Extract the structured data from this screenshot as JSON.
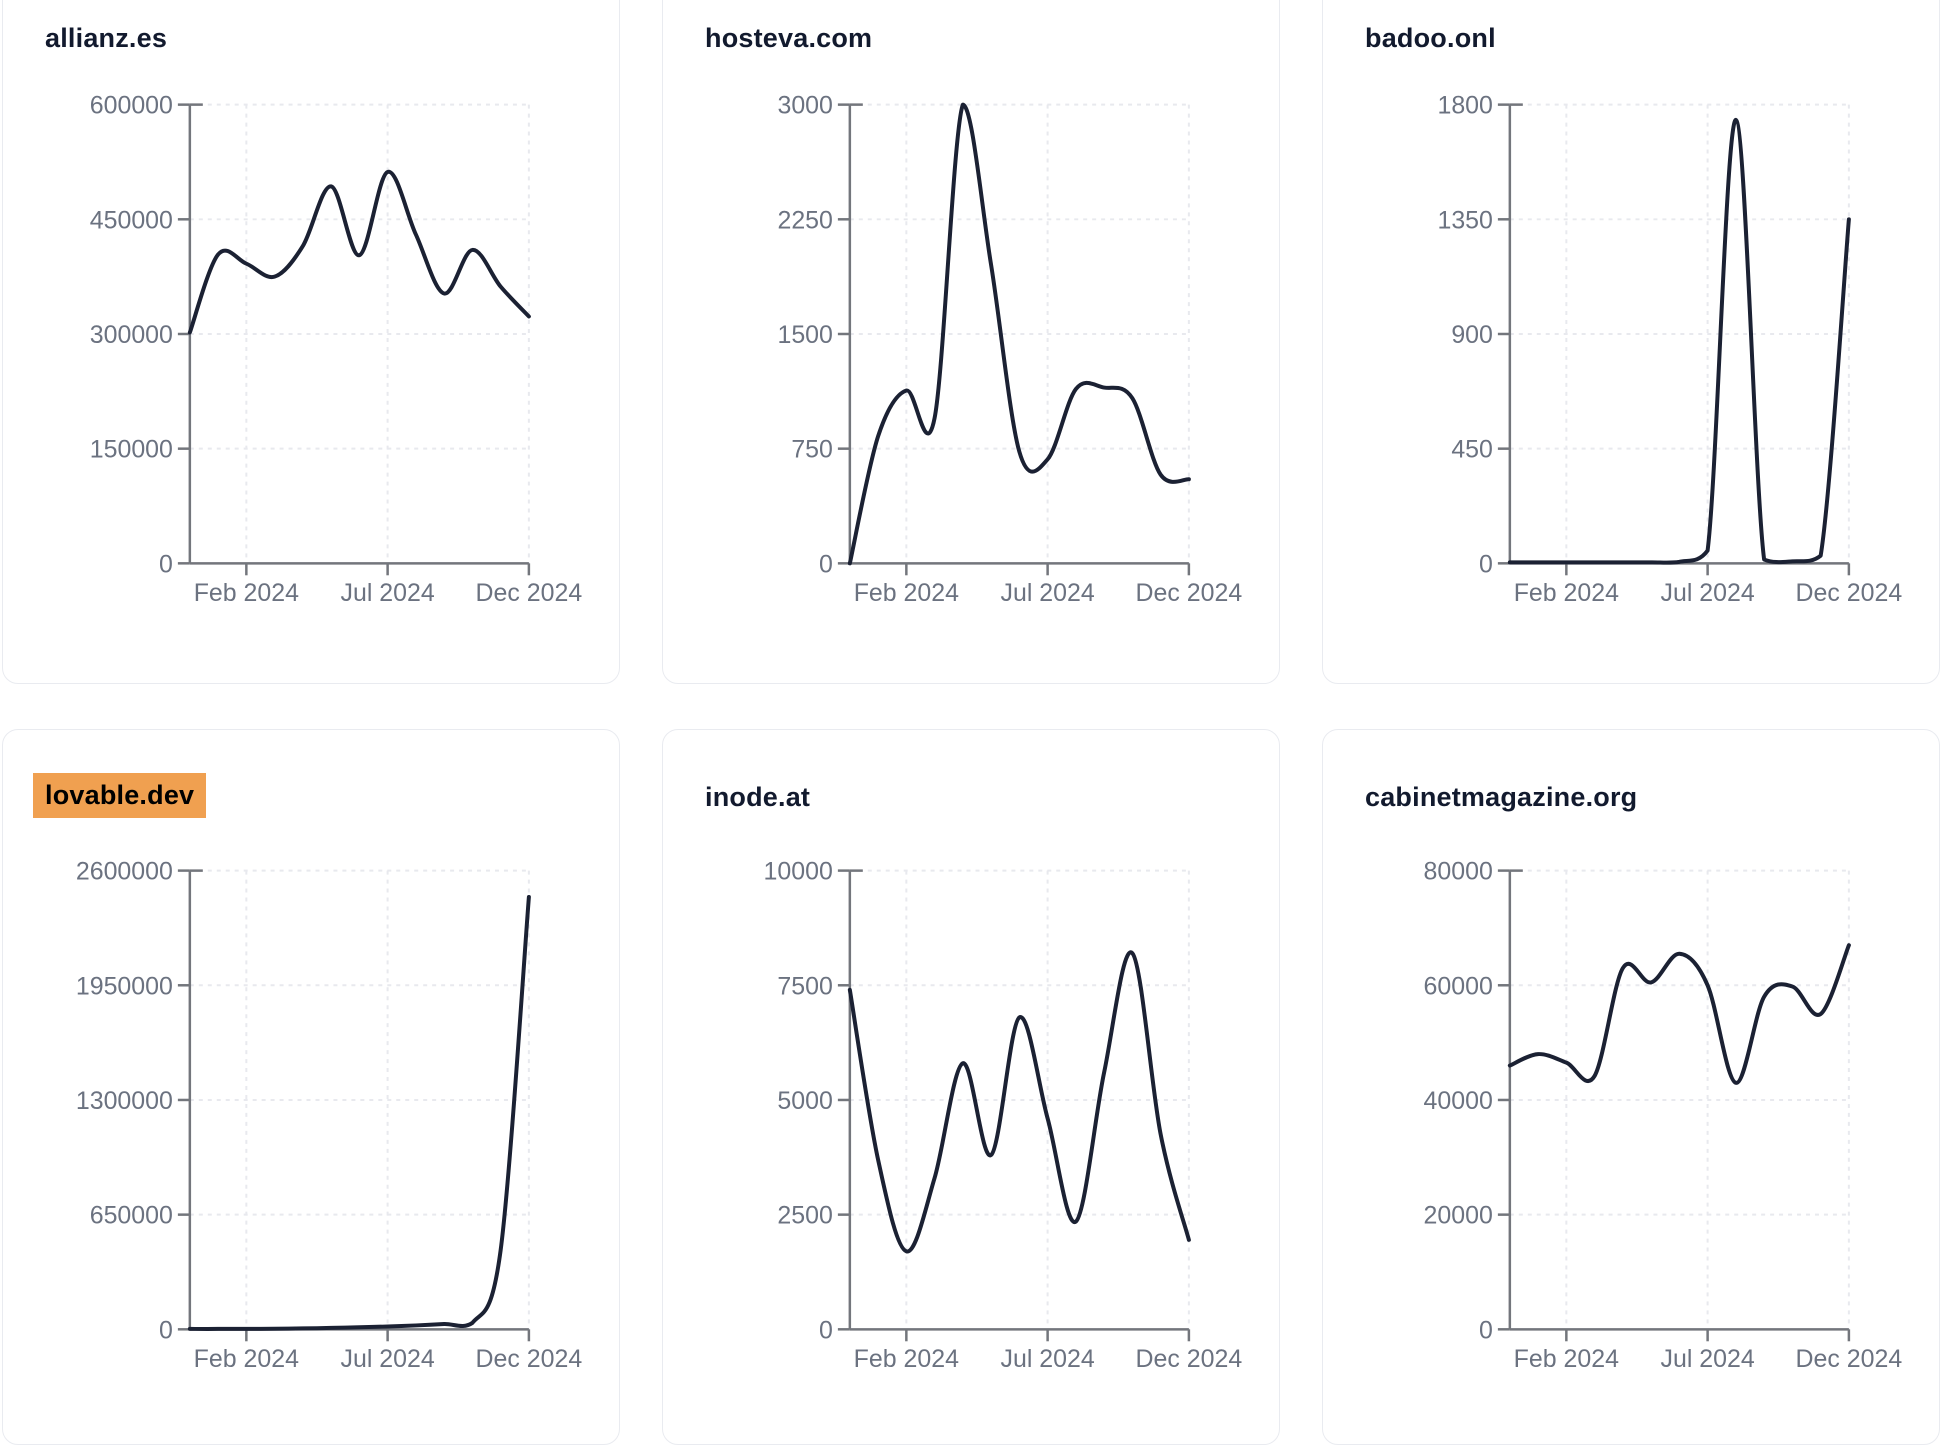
{
  "page": {
    "background": "#ffffff"
  },
  "style": {
    "line_color": "#1b2133",
    "axis_color": "#73767c",
    "grid_color": "#e8e9ee",
    "tick_label_color": "#6b7280",
    "title_color": "#121a2e",
    "highlight_color": "#f0a050",
    "card_border_color": "#e9ebf0",
    "card_background": "#ffffff"
  },
  "x_axis": {
    "tick_labels": [
      "Feb 2024",
      "Jul 2024",
      "Dec 2024"
    ],
    "tick_month_index": [
      2,
      7,
      12
    ]
  },
  "chart_data": [
    {
      "type": "line",
      "title": "allianz.es",
      "title_highlighted": false,
      "x": [
        "Dec 2023",
        "Jan 2024",
        "Feb 2024",
        "Mar 2024",
        "Apr 2024",
        "May 2024",
        "Jun 2024",
        "Jul 2024",
        "Aug 2024",
        "Sep 2024",
        "Oct 2024",
        "Nov 2024",
        "Dec 2024"
      ],
      "values": [
        302000,
        404000,
        392000,
        375000,
        415000,
        493000,
        403000,
        512000,
        430000,
        353000,
        410000,
        362000,
        323000
      ],
      "ylim": [
        0,
        600000
      ],
      "y_ticks": [
        600000,
        450000,
        300000,
        150000,
        0
      ],
      "x_tick_labels": [
        "Feb 2024",
        "Jul 2024",
        "Dec 2024"
      ],
      "grid": "dashed",
      "legend": false
    },
    {
      "type": "line",
      "title": "hosteva.com",
      "title_highlighted": false,
      "x": [
        "Dec 2023",
        "Jan 2024",
        "Feb 2024",
        "Mar 2024",
        "Apr 2024",
        "May 2024",
        "Jun 2024",
        "Jul 2024",
        "Aug 2024",
        "Sep 2024",
        "Oct 2024",
        "Nov 2024",
        "Dec 2024"
      ],
      "values": [
        0,
        830,
        1130,
        950,
        3000,
        1950,
        730,
        680,
        1140,
        1150,
        1080,
        580,
        550
      ],
      "ylim": [
        0,
        3000
      ],
      "y_ticks": [
        3000,
        2250,
        1500,
        750,
        0
      ],
      "x_tick_labels": [
        "Feb 2024",
        "Jul 2024",
        "Dec 2024"
      ],
      "grid": "dashed",
      "legend": false
    },
    {
      "type": "line",
      "title": "badoo.onl",
      "title_highlighted": false,
      "x": [
        "Dec 2023",
        "Jan 2024",
        "Feb 2024",
        "Mar 2024",
        "Apr 2024",
        "May 2024",
        "Jun 2024",
        "Jul 2024",
        "Aug 2024",
        "Sep 2024",
        "Oct 2024",
        "Nov 2024",
        "Dec 2024"
      ],
      "values": [
        4,
        4,
        4,
        4,
        4,
        4,
        6,
        50,
        1740,
        15,
        8,
        30,
        1350
      ],
      "ylim": [
        0,
        1800
      ],
      "y_ticks": [
        1800,
        1350,
        900,
        450,
        0
      ],
      "x_tick_labels": [
        "Feb 2024",
        "Jul 2024",
        "Dec 2024"
      ],
      "grid": "dashed",
      "legend": false
    },
    {
      "type": "line",
      "title": "lovable.dev",
      "title_highlighted": true,
      "x": [
        "Dec 2023",
        "Jan 2024",
        "Feb 2024",
        "Mar 2024",
        "Apr 2024",
        "May 2024",
        "Jun 2024",
        "Jul 2024",
        "Aug 2024",
        "Sep 2024",
        "Oct 2024",
        "Nov 2024",
        "Dec 2024"
      ],
      "values": [
        2000,
        2000,
        2500,
        3500,
        5000,
        8000,
        12000,
        16000,
        22000,
        30000,
        36000,
        450000,
        2450000
      ],
      "ylim": [
        0,
        2600000
      ],
      "y_ticks": [
        2600000,
        1950000,
        1300000,
        650000,
        0
      ],
      "x_tick_labels": [
        "Feb 2024",
        "Jul 2024",
        "Dec 2024"
      ],
      "grid": "dashed",
      "legend": false
    },
    {
      "type": "line",
      "title": "inode.at",
      "title_highlighted": false,
      "x": [
        "Dec 2023",
        "Jan 2024",
        "Feb 2024",
        "Mar 2024",
        "Apr 2024",
        "May 2024",
        "Jun 2024",
        "Jul 2024",
        "Aug 2024",
        "Sep 2024",
        "Oct 2024",
        "Nov 2024",
        "Dec 2024"
      ],
      "values": [
        7400,
        3700,
        1700,
        3300,
        5800,
        3800,
        6800,
        4600,
        2350,
        5600,
        8200,
        4250,
        1950
      ],
      "ylim": [
        0,
        10000
      ],
      "y_ticks": [
        10000,
        7500,
        5000,
        2500,
        0
      ],
      "x_tick_labels": [
        "Feb 2024",
        "Jul 2024",
        "Dec 2024"
      ],
      "grid": "dashed",
      "legend": false
    },
    {
      "type": "line",
      "title": "cabinetmagazine.org",
      "title_highlighted": false,
      "x": [
        "Dec 2023",
        "Jan 2024",
        "Feb 2024",
        "Mar 2024",
        "Apr 2024",
        "May 2024",
        "Jun 2024",
        "Jul 2024",
        "Aug 2024",
        "Sep 2024",
        "Oct 2024",
        "Nov 2024",
        "Dec 2024"
      ],
      "values": [
        46000,
        48000,
        46500,
        44200,
        63000,
        60500,
        65500,
        60000,
        43000,
        58000,
        59800,
        55000,
        67000
      ],
      "ylim": [
        0,
        80000
      ],
      "y_ticks": [
        80000,
        60000,
        40000,
        20000,
        0
      ],
      "x_tick_labels": [
        "Feb 2024",
        "Jul 2024",
        "Dec 2024"
      ],
      "grid": "dashed",
      "legend": false
    }
  ]
}
